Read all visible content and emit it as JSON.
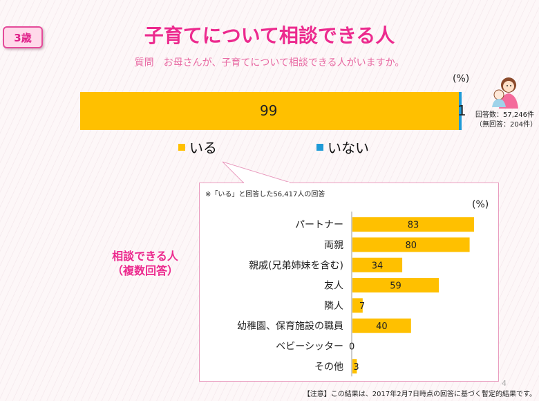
{
  "badge": "3歳",
  "title": "子育てについて相談できる人",
  "subtitle": "質問　お母さんが、子育てについて相談できる人がいますか。",
  "pct_unit": "(%)",
  "respondents_line1": "回答数：57,246件",
  "respondents_line2": "（無回答：204件）",
  "panel_note": "※「いる」と回答した56,417人の回答",
  "side_label_line1": "相談できる人",
  "side_label_line2": "（複数回答）",
  "footnote": "【注意】この結果は、2017年2月7日時点の回答に基づく暫定的結果です。",
  "page_number": "4",
  "colors": {
    "accent": "#ec2a8e",
    "bar": "#ffc000",
    "no": "#1f9bd7"
  },
  "chart_data": [
    {
      "type": "bar",
      "orientation": "horizontal-stacked",
      "categories": [
        "いる",
        "いない"
      ],
      "values": [
        99,
        1
      ],
      "value_labels": [
        "99",
        "1"
      ],
      "legend": [
        {
          "label": "いる",
          "color": "#ffc000"
        },
        {
          "label": "いない",
          "color": "#1f9bd7"
        }
      ],
      "unit": "(%)"
    },
    {
      "type": "bar",
      "orientation": "horizontal",
      "categories": [
        "パートナー",
        "両親",
        "親戚(兄弟姉妹を含む)",
        "友人",
        "隣人",
        "幼稚園、保育施設の職員",
        "ベビーシッター",
        "その他"
      ],
      "values": [
        83,
        80,
        34,
        59,
        7,
        40,
        0,
        3
      ],
      "unit": "(%)",
      "xlim": [
        0,
        100
      ]
    }
  ]
}
